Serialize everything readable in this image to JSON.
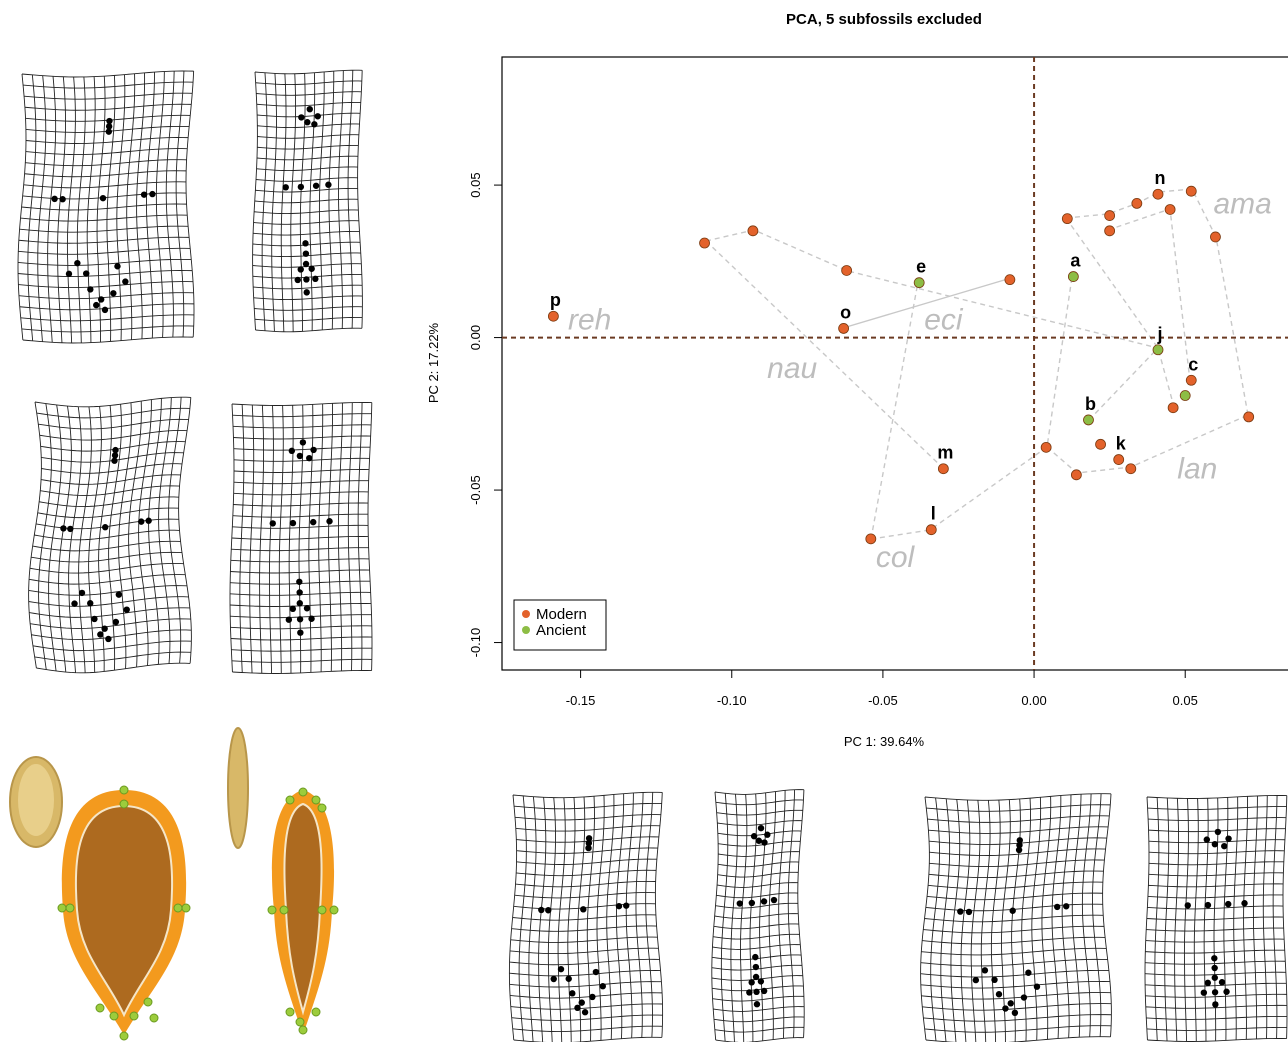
{
  "chart_data": {
    "type": "scatter",
    "title": "PCA, 5 subfossils excluded",
    "x_label": "PC 1: 39.64%",
    "y_label": "PC 2: 17.22%",
    "xlim": [
      -0.176,
      0.084
    ],
    "ylim": [
      -0.109,
      0.092
    ],
    "xticks": [
      -0.15,
      {
        "value": -0.1,
        "label": "-0.10"
      },
      -0.05,
      {
        "value": 0,
        "label": "0.00"
      },
      0.05
    ],
    "yticks": [
      0.05,
      {
        "value": 0,
        "label": "0.00"
      },
      -0.05,
      {
        "value": -0.1,
        "label": "-0.10"
      }
    ],
    "vline": 0,
    "hline": 0,
    "legend": "bottom-left",
    "series": [
      {
        "name": "Modern",
        "color": "#e3622b",
        "x": [
          -0.159,
          -0.109,
          -0.093,
          -0.062,
          -0.063,
          -0.008,
          -0.03,
          -0.034,
          -0.054,
          0.011,
          0.025,
          0.034,
          0.041,
          0.052,
          0.045,
          0.025,
          0.06,
          0.052,
          0.046,
          0.071,
          0.004,
          0.022,
          0.028,
          0.032,
          0.014
        ],
        "y": [
          0.007,
          0.031,
          0.035,
          0.022,
          0.003,
          0.019,
          -0.043,
          -0.063,
          -0.066,
          0.039,
          0.04,
          0.044,
          0.047,
          0.048,
          0.042,
          0.035,
          0.033,
          -0.014,
          -0.023,
          -0.026,
          -0.036,
          -0.035,
          -0.04,
          -0.043,
          -0.045
        ],
        "labels": [
          "p",
          null,
          null,
          null,
          "o",
          null,
          "m",
          "l",
          null,
          null,
          null,
          null,
          "n",
          null,
          null,
          null,
          null,
          "c",
          null,
          null,
          null,
          null,
          "k",
          null,
          null
        ]
      },
      {
        "name": "Ancient",
        "color": "#8dbd45",
        "x": [
          -0.038,
          0.013,
          0.041,
          0.018,
          0.05
        ],
        "y": [
          0.018,
          0.02,
          -0.004,
          -0.027,
          -0.019
        ],
        "labels": [
          "e",
          "a",
          "j",
          "b",
          null
        ]
      }
    ],
    "annotations": [
      {
        "text": "reh",
        "x": -0.147,
        "y": 0.006
      },
      {
        "text": "eci",
        "x": -0.03,
        "y": 0.006
      },
      {
        "text": "nau",
        "x": -0.08,
        "y": -0.01
      },
      {
        "text": "col",
        "x": -0.046,
        "y": -0.072
      },
      {
        "text": "ama",
        "x": 0.069,
        "y": 0.044
      },
      {
        "text": "lan",
        "x": 0.054,
        "y": -0.043
      }
    ]
  }
}
